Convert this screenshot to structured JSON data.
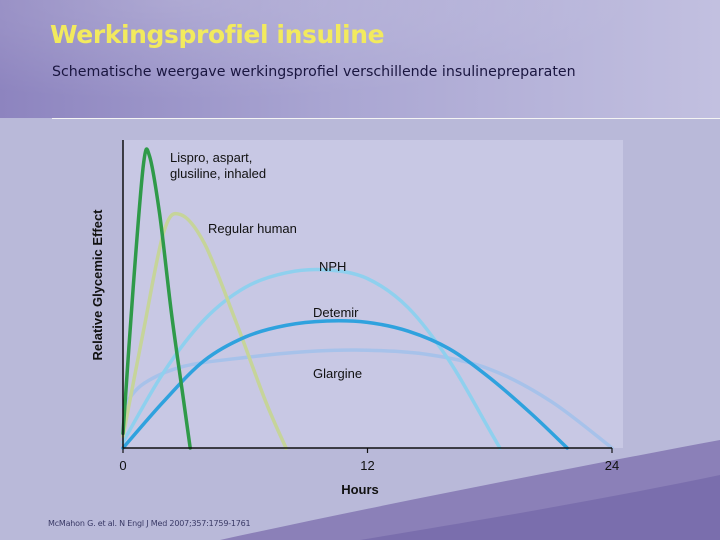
{
  "slide": {
    "title": "Werkingsprofiel insuline",
    "subtitle": "Schematische weergave werkingsprofiel verschillende insulinepreparaten",
    "citation": "McMahon G. et al. N Engl J Med 2007;357:1759-1761"
  },
  "chart_data": {
    "type": "line",
    "title": "",
    "xlabel": "Hours",
    "ylabel": "Relative Glycemic Effect",
    "xlim": [
      0,
      24
    ],
    "ylim": [
      0,
      1
    ],
    "xticks": [
      0,
      12,
      24
    ],
    "yticks": [],
    "grid": false,
    "legend": "none",
    "series": [
      {
        "name": "Lispro, aspart, glusiline, inhaled",
        "color": "#2f9a49",
        "points": [
          [
            0,
            0.05
          ],
          [
            0.5,
            0.55
          ],
          [
            1.0,
            0.97
          ],
          [
            1.3,
            1.0
          ],
          [
            1.8,
            0.8
          ],
          [
            2.4,
            0.45
          ],
          [
            3.0,
            0.15
          ],
          [
            3.3,
            0.0
          ]
        ]
      },
      {
        "name": "Regular human",
        "color": "#c6d49a",
        "points": [
          [
            0,
            0.04
          ],
          [
            1.0,
            0.4
          ],
          [
            2.0,
            0.74
          ],
          [
            2.8,
            0.8
          ],
          [
            4.0,
            0.7
          ],
          [
            5.5,
            0.44
          ],
          [
            7.0,
            0.16
          ],
          [
            8.0,
            0.0
          ]
        ]
      },
      {
        "name": "NPH",
        "color": "#8fd0ee",
        "points": [
          [
            0,
            0.02
          ],
          [
            2.0,
            0.26
          ],
          [
            4.0,
            0.44
          ],
          [
            6.0,
            0.55
          ],
          [
            8.0,
            0.6
          ],
          [
            10.0,
            0.61
          ],
          [
            12.0,
            0.58
          ],
          [
            14.0,
            0.48
          ],
          [
            16.0,
            0.3
          ],
          [
            18.0,
            0.06
          ],
          [
            18.5,
            0.0
          ]
        ]
      },
      {
        "name": "Detemir",
        "color": "#2fa2de",
        "points": [
          [
            0,
            0.0
          ],
          [
            2.0,
            0.16
          ],
          [
            4.0,
            0.3
          ],
          [
            6.0,
            0.38
          ],
          [
            8.0,
            0.42
          ],
          [
            10.0,
            0.435
          ],
          [
            12.0,
            0.43
          ],
          [
            14.0,
            0.4
          ],
          [
            16.0,
            0.34
          ],
          [
            18.0,
            0.24
          ],
          [
            20.0,
            0.12
          ],
          [
            21.8,
            0.0
          ]
        ]
      },
      {
        "name": "Glargine",
        "color": "#a7c2ea",
        "points": [
          [
            0,
            0.14
          ],
          [
            1.0,
            0.22
          ],
          [
            3.0,
            0.28
          ],
          [
            6.0,
            0.31
          ],
          [
            9.0,
            0.33
          ],
          [
            12.0,
            0.335
          ],
          [
            15.0,
            0.32
          ],
          [
            18.0,
            0.27
          ],
          [
            21.0,
            0.16
          ],
          [
            24.0,
            0.0
          ]
        ]
      }
    ],
    "annotations": [
      {
        "text_lines": [
          "Lispro, aspart,",
          "glusiline, inhaled"
        ],
        "series": "Lispro, aspart, glusiline, inhaled"
      },
      {
        "text_lines": [
          "Regular human"
        ],
        "series": "Regular human"
      },
      {
        "text_lines": [
          "NPH"
        ],
        "series": "NPH"
      },
      {
        "text_lines": [
          "Detemir"
        ],
        "series": "Detemir"
      },
      {
        "text_lines": [
          "Glargine"
        ],
        "series": "Glargine"
      }
    ]
  }
}
